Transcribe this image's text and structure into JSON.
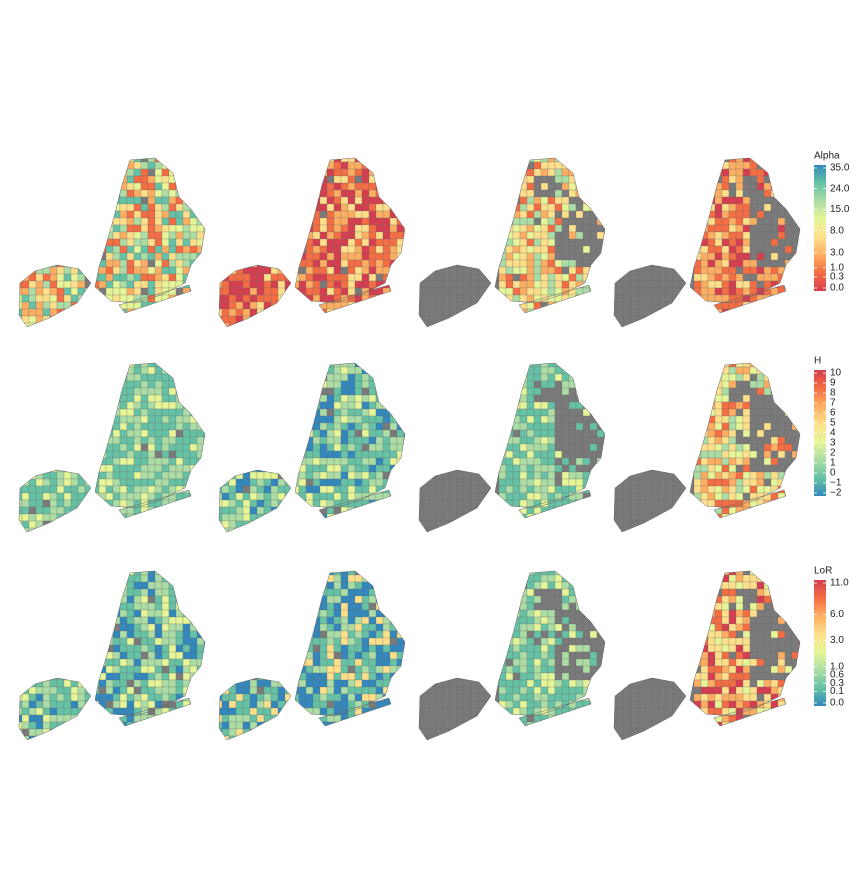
{
  "legends": [
    {
      "title": "Alpha",
      "scale": "sqrt",
      "lim": [
        0,
        35
      ],
      "ticks": [
        {
          "value": 35,
          "label": "35.0"
        },
        {
          "value": 24,
          "label": "24.0"
        },
        {
          "value": 15,
          "label": "15.0"
        },
        {
          "value": 8,
          "label": "8.0"
        },
        {
          "value": 3,
          "label": "3.0"
        },
        {
          "value": 1,
          "label": "1.0"
        },
        {
          "value": 0.3,
          "label": "0.3"
        },
        {
          "value": 0,
          "label": "0.0"
        }
      ],
      "colors": [
        "#d53e4f",
        "#f46d43",
        "#fdae61",
        "#fee08b",
        "#e6f598",
        "#abdda4",
        "#66c2a5",
        "#3288bd"
      ]
    },
    {
      "title": "H",
      "scale": "linear",
      "lim": [
        -2,
        10
      ],
      "ticks": [
        10,
        9,
        8,
        7,
        6,
        5,
        4,
        3,
        2,
        1,
        0,
        {
          "value": -1,
          "label": "−1"
        },
        {
          "value": -2,
          "label": "−2"
        }
      ],
      "colors": [
        "#3288bd",
        "#66c2a5",
        "#abdda4",
        "#e6f598",
        "#fee08b",
        "#fdae61",
        "#f46d43",
        "#d53e4f"
      ]
    },
    {
      "title": "LoR",
      "scale": "sqrt",
      "lim": [
        0,
        11
      ],
      "ticks": [
        {
          "value": 11,
          "label": "11.0"
        },
        {
          "value": 6,
          "label": "6.0"
        },
        {
          "value": 3,
          "label": "3.0"
        },
        {
          "value": 1,
          "label": "1.0"
        },
        {
          "value": 0.6,
          "label": "0.6"
        },
        {
          "value": 0.3,
          "label": "0.3"
        },
        {
          "value": 0.1,
          "label": "0.1"
        },
        {
          "value": 0,
          "label": "0.0"
        }
      ],
      "colors": [
        "#3288bd",
        "#66c2a5",
        "#abdda4",
        "#e6f598",
        "#fee08b",
        "#fdae61",
        "#f46d43",
        "#d53e4f"
      ]
    }
  ]
}
